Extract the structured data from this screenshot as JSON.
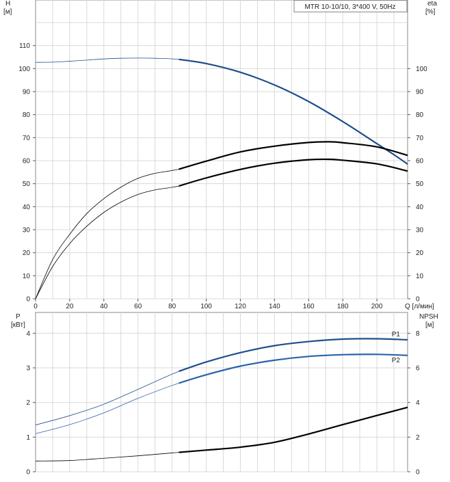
{
  "chart_data": [
    {
      "type": "line",
      "panel": "head-efficiency",
      "model_label": "MTR 10-10/10, 3*400 V, 50Hz",
      "left_axis": {
        "label_line1": "H",
        "label_line2": "[м]",
        "ticks": [
          "0",
          "10",
          "20",
          "30",
          "40",
          "50",
          "60",
          "70",
          "80",
          "90",
          "100",
          "110"
        ],
        "ylim": [
          0,
          120
        ]
      },
      "right_axis": {
        "label_line1": "eta",
        "label_line2": "[%]",
        "ticks": [
          "0",
          "10",
          "20",
          "30",
          "40",
          "50",
          "60",
          "70",
          "80",
          "90",
          "100"
        ],
        "ylim": [
          0,
          120
        ]
      },
      "x_axis": {
        "label": "Q [л/мин]",
        "ticks": [
          "0",
          "20",
          "40",
          "60",
          "80",
          "100",
          "120",
          "140",
          "160",
          "180",
          "200"
        ],
        "xlim": [
          0,
          218
        ]
      },
      "colors": {
        "head": "#1f4e8c",
        "eta_pump": "#000000",
        "eta_total": "#000000"
      },
      "series": [
        {
          "key": "head",
          "axis": "left",
          "x": [
            0,
            10,
            20,
            30,
            40,
            50,
            60,
            70,
            84,
            100,
            120,
            140,
            160,
            180,
            200,
            210,
            218
          ],
          "y": [
            102.7,
            102.8,
            103.2,
            103.7,
            104.2,
            104.5,
            104.6,
            104.5,
            104.0,
            102.2,
            98.4,
            92.9,
            85.7,
            77.0,
            67.4,
            62.6,
            58.5
          ]
        },
        {
          "key": "eta_pump",
          "axis": "right",
          "x": [
            0,
            10,
            20,
            30,
            40,
            50,
            60,
            70,
            84,
            100,
            120,
            140,
            160,
            172,
            180,
            200,
            218
          ],
          "y": [
            0,
            17,
            28,
            37,
            43.5,
            48.5,
            52.3,
            54.5,
            56.3,
            59.8,
            63.8,
            66.3,
            67.9,
            68.2,
            67.8,
            66.0,
            62.3
          ]
        },
        {
          "key": "eta_total",
          "axis": "right",
          "x": [
            0,
            10,
            20,
            30,
            40,
            50,
            60,
            70,
            84,
            100,
            120,
            140,
            160,
            172,
            180,
            200,
            218
          ],
          "y": [
            0,
            14,
            24,
            31.5,
            37.5,
            42,
            45.3,
            47.3,
            49.0,
            52.5,
            56.2,
            58.9,
            60.4,
            60.6,
            60.2,
            58.6,
            55.5
          ]
        }
      ]
    },
    {
      "type": "line",
      "panel": "power-npsh",
      "left_axis": {
        "label_line1": "P",
        "label_line2": "[кВт]",
        "ticks": [
          "0",
          "1",
          "2",
          "3",
          "4"
        ],
        "ylim": [
          0,
          4.6
        ]
      },
      "right_axis": {
        "label_line1": "NPSH",
        "label_line2": "[м]",
        "ticks": [
          "0",
          "2",
          "4",
          "6",
          "8"
        ],
        "ylim": [
          0,
          9.2
        ]
      },
      "x_axis": {
        "xlim": [
          0,
          218
        ]
      },
      "colors": {
        "P1": "#1f4e8c",
        "P2": "#2a63a8",
        "npsh": "#000000"
      },
      "series": [
        {
          "key": "P1",
          "name": "P1",
          "axis": "left",
          "x": [
            0,
            20,
            40,
            60,
            84,
            100,
            120,
            140,
            160,
            180,
            200,
            218
          ],
          "y": [
            1.35,
            1.62,
            1.95,
            2.38,
            2.9,
            3.17,
            3.44,
            3.64,
            3.76,
            3.83,
            3.84,
            3.81
          ]
        },
        {
          "key": "P2",
          "name": "P2",
          "axis": "left",
          "x": [
            0,
            20,
            40,
            60,
            84,
            100,
            120,
            140,
            160,
            180,
            200,
            218
          ],
          "y": [
            1.1,
            1.36,
            1.7,
            2.12,
            2.56,
            2.8,
            3.05,
            3.22,
            3.33,
            3.38,
            3.39,
            3.36
          ]
        },
        {
          "key": "npsh",
          "axis": "right",
          "x": [
            0,
            20,
            40,
            60,
            84,
            100,
            120,
            140,
            160,
            180,
            200,
            218
          ],
          "y": [
            0.62,
            0.65,
            0.78,
            0.92,
            1.12,
            1.25,
            1.42,
            1.7,
            2.18,
            2.72,
            3.25,
            3.72
          ]
        }
      ]
    }
  ]
}
